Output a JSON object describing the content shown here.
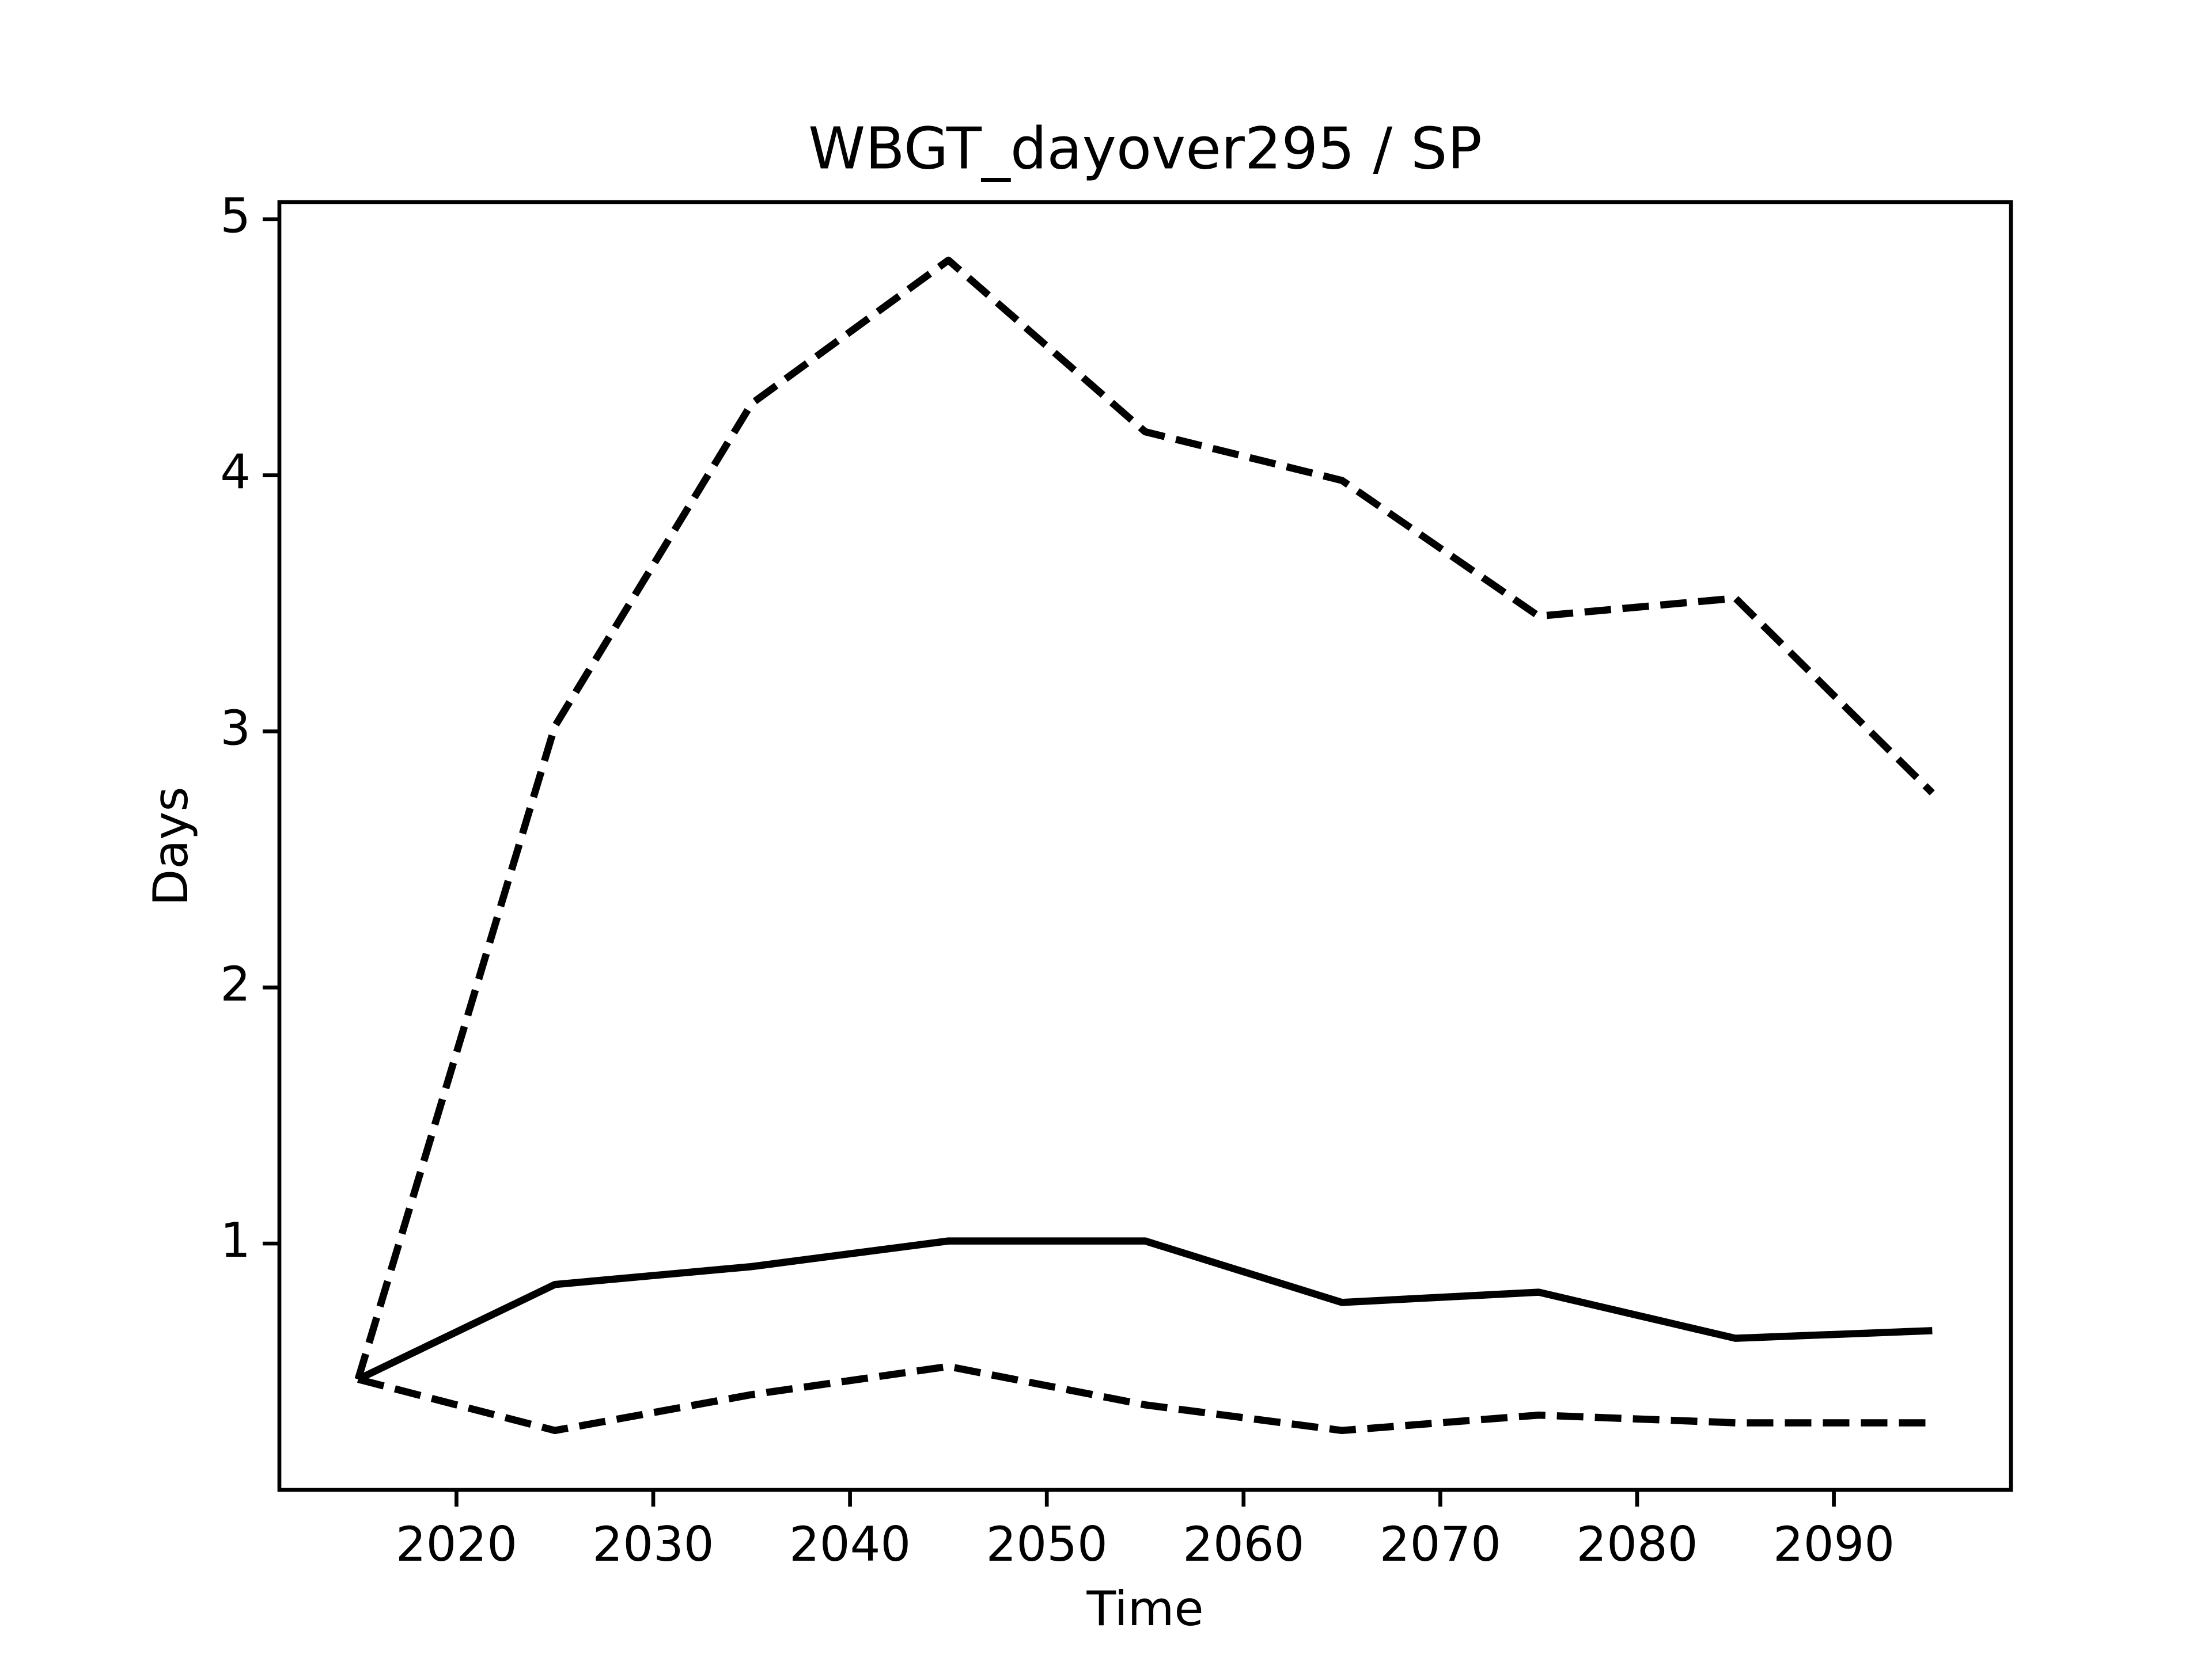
{
  "chart_data": {
    "type": "line",
    "title": "WBGT_dayover295 / SP",
    "xlabel": "Time",
    "ylabel": "Days",
    "x": [
      2015,
      2025,
      2035,
      2045,
      2055,
      2065,
      2075,
      2085,
      2095
    ],
    "series": [
      {
        "color": "#000000",
        "linestyle": "dashed",
        "values": [
          0.47,
          3.02,
          4.28,
          4.84,
          4.17,
          3.98,
          3.45,
          3.52,
          2.76
        ]
      },
      {
        "color": "#000000",
        "linestyle": "solid",
        "values": [
          0.47,
          0.84,
          0.91,
          1.01,
          1.01,
          0.77,
          0.81,
          0.63,
          0.66
        ]
      },
      {
        "color": "#000000",
        "linestyle": "dashed",
        "values": [
          0.47,
          0.27,
          0.41,
          0.52,
          0.37,
          0.27,
          0.33,
          0.3,
          0.3
        ]
      }
    ],
    "xlim": [
      2011,
      2099
    ],
    "ylim": [
      0.038,
      5.067
    ],
    "xticks": [
      2020,
      2030,
      2040,
      2050,
      2060,
      2070,
      2080,
      2090
    ],
    "yticks": [
      1,
      2,
      3,
      4,
      5
    ],
    "grid": false
  }
}
